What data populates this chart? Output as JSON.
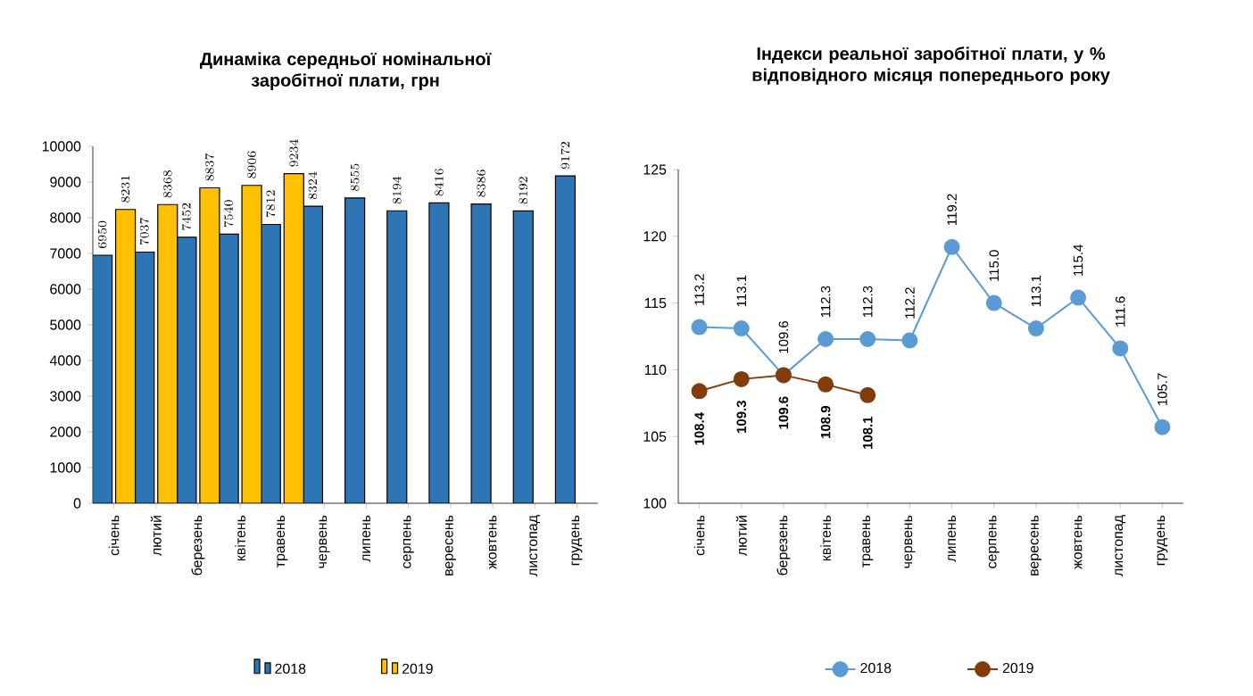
{
  "chart_data": [
    {
      "type": "bar",
      "title": "Динаміка середньої номінальної заробітної плати, грн",
      "categories": [
        "січень",
        "лютий",
        "березень",
        "квітень",
        "травень",
        "червень",
        "липень",
        "серпень",
        "вересень",
        "жовтень",
        "листопад",
        "грудень"
      ],
      "series": [
        {
          "name": "2018",
          "color": "#2e75b6",
          "values": [
            6950,
            7037,
            7452,
            7540,
            7812,
            8324,
            8555,
            8194,
            8416,
            8386,
            8192,
            9172
          ]
        },
        {
          "name": "2019",
          "color": "#ffc000",
          "values": [
            8231,
            8368,
            8837,
            8906,
            9234,
            null,
            null,
            null,
            null,
            null,
            null,
            null
          ]
        }
      ],
      "ylim": [
        0,
        10000
      ],
      "yticks": [
        0,
        1000,
        2000,
        3000,
        4000,
        5000,
        6000,
        7000,
        8000,
        9000,
        10000
      ],
      "data_labels": true,
      "legend": "bottom",
      "grid": false
    },
    {
      "type": "line",
      "title": "Індекси реальної заробітної плати, у % відповідного місяця попереднього року",
      "categories": [
        "січень",
        "лютий",
        "березень",
        "квітень",
        "травень",
        "червень",
        "липень",
        "серпень",
        "вересень",
        "жовтень",
        "листопад",
        "грудень"
      ],
      "series": [
        {
          "name": "2018",
          "color": "#5b9bd5",
          "values": [
            113.2,
            113.1,
            109.6,
            112.3,
            112.3,
            112.2,
            119.2,
            115.0,
            113.1,
            115.4,
            111.6,
            105.7
          ],
          "value_labels": [
            "113.2",
            "113.1",
            "109.6",
            "112.3",
            "112.3",
            "112.2",
            "119.2",
            "115.0",
            "113.1",
            "115.4",
            "111.6",
            "105.7"
          ]
        },
        {
          "name": "2019",
          "color": "#843c0c",
          "values": [
            108.4,
            109.3,
            109.6,
            108.9,
            108.1,
            null,
            null,
            null,
            null,
            null,
            null,
            null
          ],
          "value_labels": [
            "108.4",
            "109.3",
            "109.6",
            "108.9",
            "108.1",
            null,
            null,
            null,
            null,
            null,
            null,
            null
          ]
        }
      ],
      "ylim": [
        100,
        125
      ],
      "yticks": [
        100,
        105,
        110,
        115,
        120,
        125
      ],
      "marker": "circle",
      "line_style": "solid",
      "legend": "bottom",
      "grid": false
    }
  ]
}
